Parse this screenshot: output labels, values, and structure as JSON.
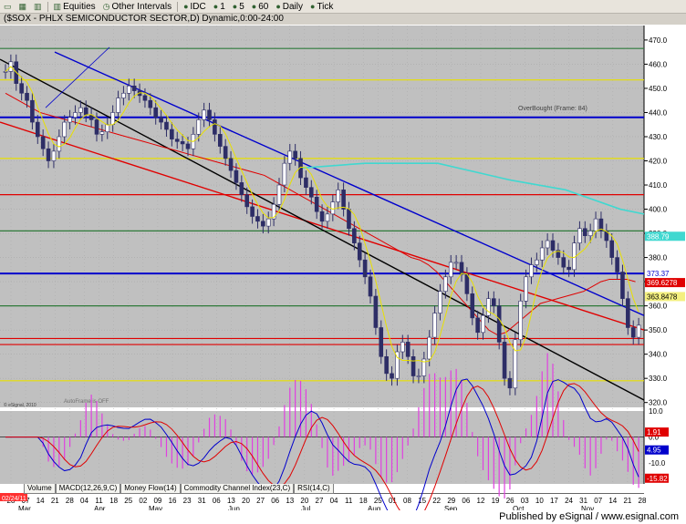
{
  "toolbar": {
    "items": [
      {
        "icon": "page-icon",
        "label": ""
      },
      {
        "icon": "grid-icon",
        "label": ""
      },
      {
        "icon": "bars-icon",
        "label": ""
      },
      {
        "icon": "bars-icon",
        "label": "Equities"
      },
      {
        "icon": "clock-icon",
        "label": "Other Intervals"
      },
      {
        "icon": "dot-icon",
        "label": "IDC"
      },
      {
        "icon": "dot-icon",
        "label": "1"
      },
      {
        "icon": "dot-icon",
        "label": "5"
      },
      {
        "icon": "dot-icon",
        "label": "60"
      },
      {
        "icon": "dot-icon",
        "label": "Daily"
      },
      {
        "icon": "dot-icon",
        "label": "Tick"
      }
    ]
  },
  "title": "($SOX - PHLX SEMICONDUCTOR SECTOR,D) Dynamic,0:00-24:00",
  "annotations": {
    "overbought": "OverBought (Frame: 84)",
    "autopilot": "AutoFrame is OFF",
    "copyright": "© eSignal, 2010"
  },
  "price_labels": {
    "cyan": "388.79",
    "blue": "373.37",
    "red": "369.6278",
    "yellow": "363.8478"
  },
  "macd_labels": {
    "red": "1.91",
    "blue": "4.95",
    "histogram": "-15.82"
  },
  "date_box": "02/24/11",
  "tabs": [
    "Volume",
    "MACD(12,26,9,C)",
    "Money Flow(14)",
    "Commodity Channel Index(23,C)",
    "RSI(14,C)"
  ],
  "footer": "Published by eSignal / www.esignal.com",
  "colors": {
    "background": "#c0c0c0",
    "grid": "#a8a8a8",
    "axis_text": "#000000",
    "up_candle": "#2d2d66",
    "red_line": "#e00000",
    "blue_line": "#0000cc",
    "yellow_line": "#e8e000",
    "cyan_line": "#40d8d0",
    "green_line": "#2e7a3a"
  },
  "chart_data": [
    {
      "type": "line",
      "title": "($SOX - PHLX SEMICONDUCTOR SECTOR,D) Dynamic,0:00-24:00",
      "yticks": [
        320,
        330,
        340,
        350,
        360,
        370,
        380,
        390,
        400,
        410,
        420,
        430,
        440,
        450,
        460,
        470
      ],
      "ylim": [
        318,
        476
      ],
      "xticks": [
        "28",
        "07",
        "14",
        "21",
        "28",
        "04",
        "11",
        "18",
        "25",
        "02",
        "09",
        "16",
        "23",
        "31",
        "06",
        "13",
        "20",
        "27",
        "06",
        "13",
        "20",
        "27",
        "04",
        "11",
        "18",
        "25",
        "01",
        "08",
        "15",
        "22",
        "29",
        "06",
        "12",
        "19",
        "26",
        "03",
        "10",
        "17",
        "24",
        "31",
        "07",
        "14",
        "21",
        "28"
      ],
      "month_labels": [
        "Mar",
        "Apr",
        "May",
        "Jun",
        "Jul",
        "Aug",
        "Sep",
        "Oct",
        "Nov"
      ],
      "horizontal_levels": [
        {
          "color": "green",
          "value": 466.5
        },
        {
          "color": "yellow",
          "value": 453.5
        },
        {
          "color": "blue",
          "value": 438.0
        },
        {
          "color": "yellow",
          "value": 421.0
        },
        {
          "color": "red",
          "value": 406.0
        },
        {
          "color": "green",
          "value": 391.0
        },
        {
          "color": "blue",
          "value": 373.4
        },
        {
          "color": "green",
          "value": 360.0
        },
        {
          "color": "red",
          "value": 346.5
        },
        {
          "color": "red",
          "value": 344.0
        },
        {
          "color": "yellow",
          "value": 329.0
        }
      ],
      "close_series": [
        457,
        461,
        452,
        448,
        445,
        436,
        430,
        425,
        420,
        424,
        430,
        436,
        438,
        440,
        442,
        439,
        437,
        431,
        432,
        435,
        440,
        446,
        448,
        451,
        449,
        447,
        445,
        442,
        438,
        436,
        433,
        429,
        428,
        427,
        425,
        431,
        437,
        441,
        437,
        431,
        426,
        421,
        416,
        411,
        406,
        401,
        397,
        395,
        393,
        396,
        402,
        410,
        419,
        424,
        421,
        413,
        409,
        405,
        399,
        395,
        398,
        403,
        408,
        400,
        392,
        386,
        379,
        372,
        364,
        351,
        339,
        332,
        330,
        341,
        345,
        339,
        331,
        331,
        338,
        347,
        357,
        366,
        372,
        378,
        378,
        373,
        365,
        355,
        349,
        356,
        363,
        360,
        345,
        330,
        326,
        346,
        362,
        372,
        377,
        379,
        384,
        387,
        383,
        380,
        376,
        375,
        386,
        392,
        389,
        391,
        396,
        391,
        387,
        380,
        374,
        363,
        351,
        347,
        352
      ],
      "red_ma": [
        448,
        446,
        444,
        442,
        440,
        439,
        438,
        437,
        436,
        435,
        434,
        433,
        432,
        431,
        430,
        429,
        428,
        427,
        426,
        425,
        424,
        423,
        422,
        421,
        420,
        419,
        418,
        417,
        416,
        415,
        414,
        412,
        410,
        408,
        406,
        404,
        402,
        400,
        398,
        396,
        394,
        392,
        390,
        388,
        386,
        384,
        382,
        380,
        379,
        377,
        374,
        370,
        366,
        362,
        358,
        354,
        350,
        348,
        349,
        352,
        355,
        358,
        361,
        362,
        363,
        364,
        365,
        366,
        368,
        370,
        371,
        371,
        371,
        370
      ],
      "series": [
        {
          "name": "",
          "values": []
        }
      ],
      "macd": {
        "ylim": [
          -18,
          10
        ],
        "labels": [
          "1.91",
          "4.95",
          "-15.82"
        ]
      }
    }
  ]
}
